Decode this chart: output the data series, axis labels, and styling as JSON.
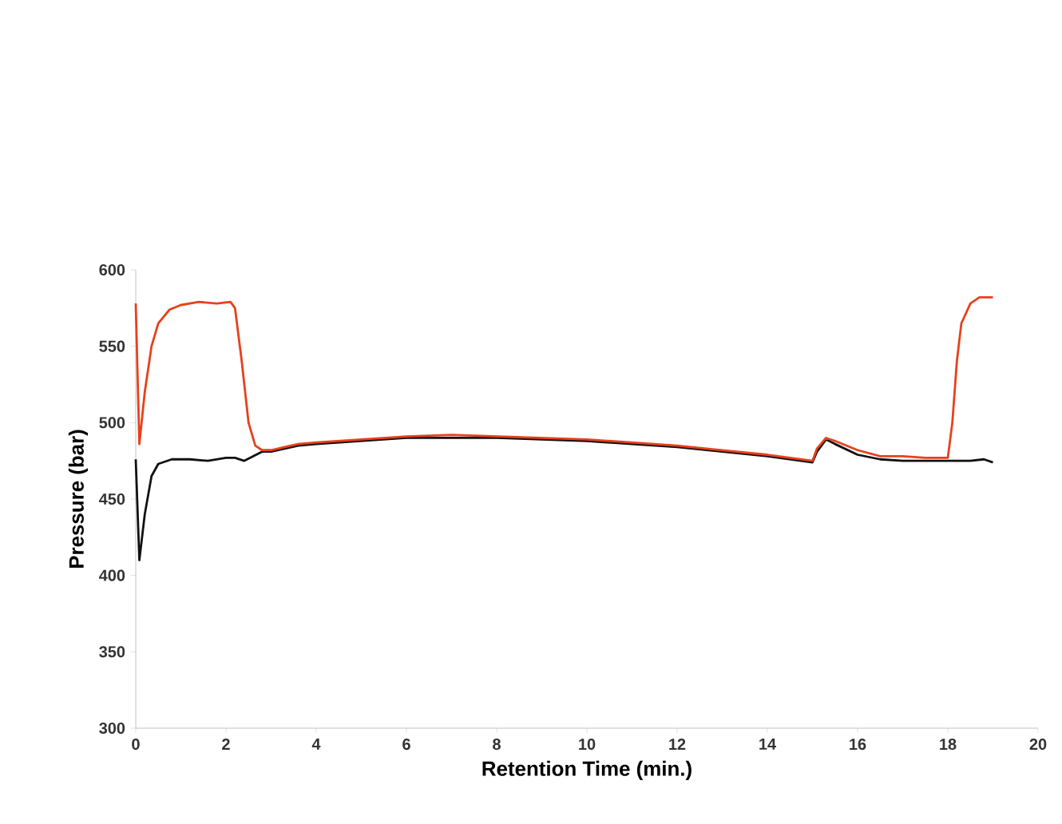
{
  "chart_data": {
    "type": "line",
    "xlabel": "Retention Time (min.)",
    "ylabel": "Pressure (bar)",
    "xlim": [
      0,
      20
    ],
    "ylim": [
      300,
      600
    ],
    "xticks": [
      0,
      2,
      4,
      6,
      8,
      10,
      12,
      14,
      16,
      18,
      20
    ],
    "yticks": [
      300,
      350,
      400,
      450,
      500,
      550,
      600
    ],
    "grid": false,
    "legend": false,
    "marker": "none",
    "line_style": "solid",
    "series": [
      {
        "color": "#111111",
        "x": [
          0,
          0.08,
          0.2,
          0.35,
          0.5,
          0.8,
          1.2,
          1.6,
          2.0,
          2.2,
          2.4,
          2.6,
          2.8,
          3.0,
          3.3,
          3.6,
          4,
          5,
          6,
          7,
          8,
          9,
          10,
          11,
          12,
          13,
          14,
          14.5,
          15.0,
          15.1,
          15.3,
          15.5,
          16,
          16.5,
          17,
          17.5,
          18,
          18.5,
          18.8,
          19.0
        ],
        "values": [
          476,
          410,
          440,
          465,
          473,
          476,
          476,
          475,
          477,
          477,
          475,
          478,
          481,
          481,
          483,
          485,
          486,
          488,
          490,
          490,
          490,
          489,
          488,
          486,
          484,
          481,
          478,
          476,
          474,
          481,
          489,
          486,
          479,
          476,
          475,
          475,
          475,
          475,
          476,
          474
        ]
      },
      {
        "color": "#e8401c",
        "x": [
          0,
          0.08,
          0.2,
          0.35,
          0.5,
          0.75,
          1.0,
          1.4,
          1.8,
          2.1,
          2.2,
          2.35,
          2.5,
          2.65,
          2.8,
          3.0,
          3.3,
          3.6,
          4,
          5,
          6,
          7,
          8,
          9,
          10,
          11,
          12,
          13,
          14,
          14.5,
          15.0,
          15.1,
          15.3,
          15.5,
          16,
          16.5,
          17,
          17.5,
          18.0,
          18.1,
          18.2,
          18.3,
          18.5,
          18.7,
          19.0
        ],
        "values": [
          578,
          486,
          520,
          550,
          565,
          574,
          577,
          579,
          578,
          579,
          575,
          540,
          500,
          485,
          482,
          482,
          484,
          486,
          487,
          489,
          491,
          492,
          491,
          490,
          489,
          487,
          485,
          482,
          479,
          477,
          475,
          483,
          490,
          488,
          482,
          478,
          478,
          477,
          477,
          500,
          540,
          565,
          578,
          582,
          582
        ]
      }
    ]
  }
}
